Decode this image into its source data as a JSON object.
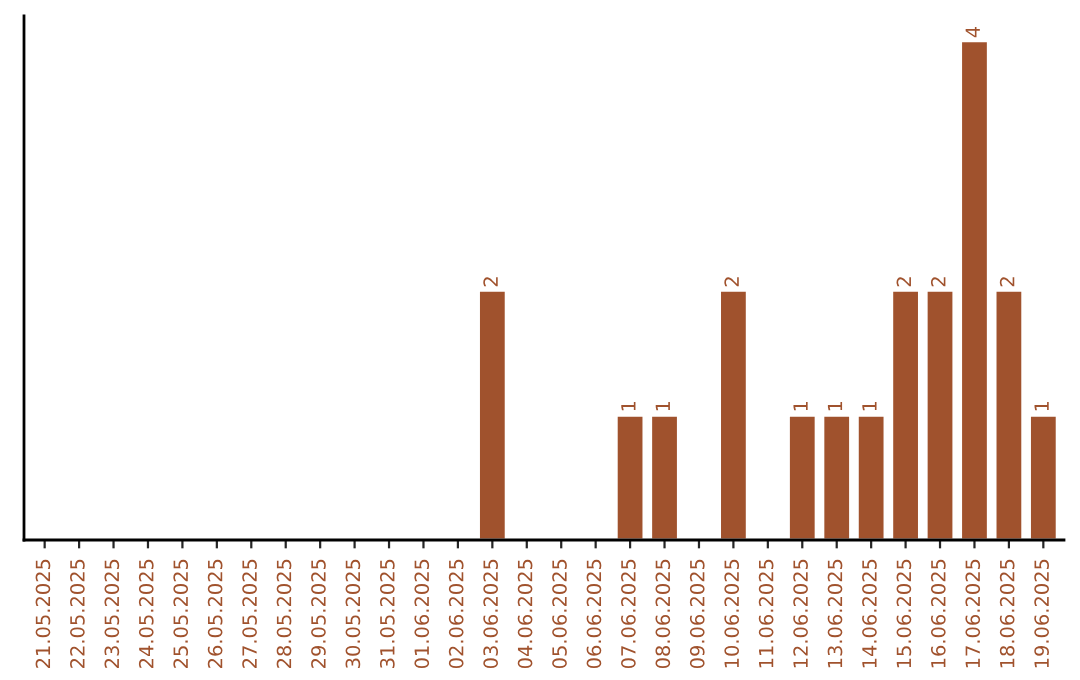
{
  "chart_data": {
    "type": "bar",
    "categories": [
      "21.05.2025",
      "22.05.2025",
      "23.05.2025",
      "24.05.2025",
      "25.05.2025",
      "26.05.2025",
      "27.05.2025",
      "28.05.2025",
      "29.05.2025",
      "30.05.2025",
      "31.05.2025",
      "01.06.2025",
      "02.06.2025",
      "03.06.2025",
      "04.06.2025",
      "05.06.2025",
      "06.06.2025",
      "07.06.2025",
      "08.06.2025",
      "09.06.2025",
      "10.06.2025",
      "11.06.2025",
      "12.06.2025",
      "13.06.2025",
      "14.06.2025",
      "15.06.2025",
      "16.06.2025",
      "17.06.2025",
      "18.06.2025",
      "19.06.2025"
    ],
    "values": [
      null,
      null,
      null,
      null,
      null,
      null,
      null,
      null,
      null,
      null,
      null,
      null,
      null,
      2,
      null,
      null,
      null,
      1,
      1,
      null,
      2,
      null,
      1,
      1,
      1,
      2,
      2,
      4,
      2,
      1
    ],
    "data_labels": true,
    "color": "#a0522d",
    "tick_labels": "x"
  }
}
